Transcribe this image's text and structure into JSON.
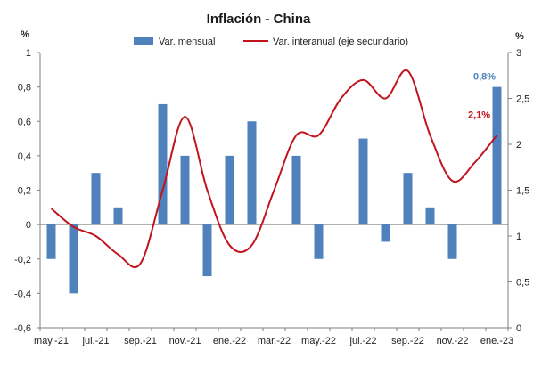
{
  "chart_data": {
    "type": "bar+line",
    "title": "Inflación - China",
    "left_axis_unit": "%",
    "right_axis_unit": "%",
    "x_tick_labels": [
      "may.-21",
      "jul.-21",
      "sep.-21",
      "nov.-21",
      "ene.-22",
      "mar.-22",
      "may.-22",
      "jul.-22",
      "sep.-22",
      "nov.-22",
      "ene.-23"
    ],
    "categories": [
      "may.-21",
      "jun.-21",
      "jul.-21",
      "ago.-21",
      "sep.-21",
      "oct.-21",
      "nov.-21",
      "dic.-21",
      "ene.-22",
      "feb.-22",
      "mar.-22",
      "abr.-22",
      "may.-22",
      "jun.-22",
      "jul.-22",
      "ago.-22",
      "sep.-22",
      "oct.-22",
      "nov.-22",
      "dic.-22",
      "ene.-23"
    ],
    "bar_series": {
      "name": "Var. mensual",
      "color": "#4f81bd",
      "axis": "primary",
      "values": [
        -0.2,
        -0.4,
        0.3,
        0.1,
        0.0,
        0.7,
        0.4,
        -0.3,
        0.4,
        0.6,
        0.0,
        0.4,
        -0.2,
        0.0,
        0.5,
        -0.1,
        0.3,
        0.1,
        -0.2,
        0.0,
        0.8
      ]
    },
    "line_series": {
      "name": "Var. interanual (eje secundario)",
      "color": "#c0141e",
      "axis": "secondary",
      "values": [
        1.3,
        1.1,
        1.0,
        0.8,
        0.7,
        1.5,
        2.3,
        1.5,
        0.9,
        0.9,
        1.5,
        2.1,
        2.1,
        2.5,
        2.7,
        2.5,
        2.8,
        2.1,
        1.6,
        1.8,
        2.1
      ]
    },
    "y_left": {
      "min": -0.6,
      "max": 1.0,
      "step": 0.2,
      "tick_labels": [
        "-0,6",
        "-0,4",
        "-0,2",
        "0",
        "0,2",
        "0,4",
        "0,6",
        "0,8",
        "1"
      ]
    },
    "y_right": {
      "min": 0,
      "max": 3,
      "step": 0.5,
      "tick_labels": [
        "0",
        "0,5",
        "1",
        "1,5",
        "2",
        "2,5",
        "3"
      ]
    },
    "annotations": [
      {
        "text": "0,8%",
        "series": "bar",
        "index": 20,
        "color": "#4f81bd"
      },
      {
        "text": "2,1%",
        "series": "line",
        "index": 20,
        "color": "#c0141e"
      }
    ],
    "legend_position": "top",
    "grid": false
  }
}
